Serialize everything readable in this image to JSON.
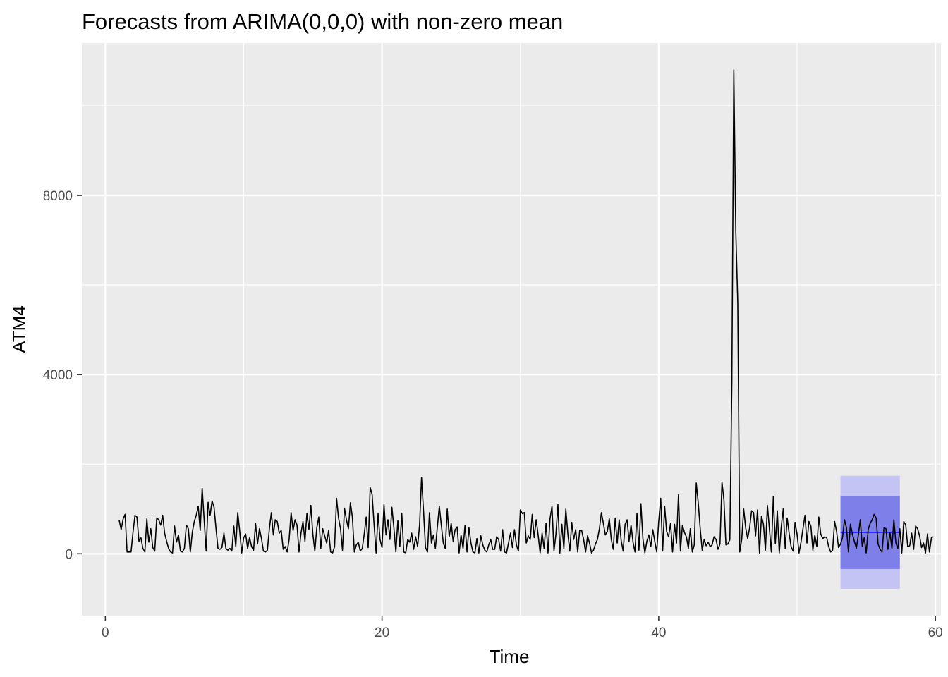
{
  "chart_data": {
    "type": "line",
    "title": "Forecasts from ARIMA(0,0,0) with non-zero mean",
    "xlabel": "Time",
    "ylabel": "ATM4",
    "xlim": [
      -1.7,
      60.4
    ],
    "ylim": [
      -1380,
      11400
    ],
    "x_ticks": [
      0,
      20,
      40,
      60
    ],
    "x_tick_labels": [
      "0",
      "20",
      "40",
      "60"
    ],
    "y_ticks": [
      0,
      4000,
      8000
    ],
    "y_tick_labels": [
      "0",
      "4000",
      "8000"
    ],
    "grid": true,
    "background": "#ebebeb",
    "grid_color": "#ffffff",
    "series": [
      {
        "start": 1.0,
        "step": 0.142857,
        "color": "#000000",
        "values": [
          750,
          540,
          780,
          880,
          40,
          40,
          40,
          480,
          860,
          820,
          280,
          360,
          120,
          40,
          780,
          260,
          560,
          140,
          60,
          800,
          760,
          640,
          860,
          460,
          280,
          120,
          40,
          20,
          620,
          260,
          420,
          60,
          40,
          120,
          640,
          560,
          40,
          480,
          720,
          860,
          1060,
          520,
          1460,
          760,
          60,
          1150,
          860,
          1180,
          1040,
          560,
          120,
          100,
          140,
          460,
          120,
          80,
          120,
          60,
          620,
          160,
          920,
          500,
          20,
          360,
          440,
          120,
          360,
          160,
          80,
          680,
          220,
          560,
          340,
          60,
          40,
          80,
          560,
          920,
          420,
          760,
          720,
          460,
          520,
          100,
          160,
          40,
          320,
          920,
          520,
          760,
          640,
          40,
          460,
          720,
          280,
          900,
          540,
          1080,
          440,
          60,
          580,
          820,
          120,
          560,
          400,
          240,
          520,
          40,
          20,
          160,
          1240,
          800,
          560,
          80,
          1020,
          760,
          560,
          1140,
          820,
          40,
          200,
          260,
          60,
          120,
          440,
          820,
          140,
          1480,
          1320,
          640,
          20,
          900,
          320,
          140,
          1100,
          420,
          760,
          320,
          1040,
          580,
          40,
          740,
          160,
          900,
          40,
          20,
          320,
          260,
          460,
          100,
          380,
          160,
          640,
          1700,
          960,
          140,
          40,
          920,
          240,
          420,
          120,
          600,
          1060,
          640,
          240,
          120,
          1000,
          380,
          680,
          280,
          540,
          600,
          20,
          420,
          120,
          640,
          40,
          580,
          240,
          40,
          20,
          340,
          20,
          400,
          200,
          80,
          40,
          200,
          320,
          100,
          100,
          380,
          320,
          60,
          540,
          40,
          20,
          240,
          460,
          140,
          540,
          200,
          60,
          980,
          900,
          920,
          240,
          400,
          320,
          880,
          360,
          760,
          420,
          20,
          460,
          120,
          680,
          20,
          780,
          1060,
          60,
          440,
          1100,
          20,
          660,
          120,
          1000,
          460,
          60,
          700,
          320,
          540,
          40,
          520,
          520,
          320,
          40,
          400,
          240,
          20,
          80,
          220,
          320,
          560,
          920,
          680,
          420,
          500,
          780,
          320,
          100,
          800,
          240,
          760,
          300,
          60,
          660,
          760,
          280,
          640,
          260,
          40,
          900,
          80,
          1120,
          340,
          20,
          280,
          420,
          160,
          540,
          280,
          40,
          720,
          1240,
          60,
          1060,
          500,
          380,
          680,
          40,
          660,
          240,
          1320,
          60,
          640,
          480,
          380,
          120,
          560,
          40,
          200,
          1580,
          1140,
          560,
          80,
          320,
          180,
          260,
          160,
          200,
          380,
          320,
          100,
          220,
          1600,
          1200,
          200,
          220,
          320,
          3800,
          10800,
          7200,
          5600,
          40,
          320,
          1000,
          580,
          340,
          580,
          960,
          920,
          400,
          980,
          20,
          840,
          660,
          80,
          1080,
          560,
          40,
          1280,
          220,
          960,
          20,
          600,
          1000,
          120,
          800,
          460,
          160,
          60,
          700,
          440,
          20,
          260,
          560,
          860,
          240,
          720,
          620,
          80,
          420,
          160,
          820,
          440,
          340,
          380,
          360,
          160,
          40,
          80,
          720,
          500,
          140,
          220,
          360,
          760,
          580,
          40,
          660,
          440,
          280,
          120,
          420,
          760,
          160,
          360,
          20,
          540,
          680,
          760,
          880,
          800,
          220,
          100,
          40,
          580,
          560,
          100,
          480,
          120,
          760,
          240,
          120,
          560,
          20,
          720,
          640,
          160,
          180,
          460,
          100,
          620,
          560,
          400,
          140,
          240,
          20,
          440,
          40,
          360,
          380
        ]
      },
      {
        "name": "",
        "start": 53.14,
        "end": 57.43,
        "mean": 480,
        "line_color": "#0000ff",
        "lo80": -340,
        "hi80": 1290,
        "lo95": -780,
        "hi95": 1740,
        "color80": "#7f7fea",
        "color95": "#c3c3f4"
      }
    ]
  }
}
